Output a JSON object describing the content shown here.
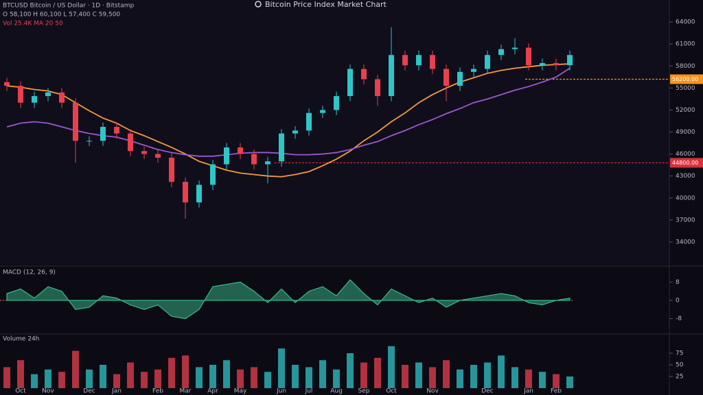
{
  "header": {
    "title": "Bitcoin Price Index Market Chart",
    "info_lines": [
      "BTCUSD Bitcoin / US Dollar · 1D · Bitstamp",
      "O 58,100 H 60,100 L 57,400 C 59,500",
      "Vol 25.4K MA 20 50"
    ]
  },
  "chart_data": {
    "type": "candlestick",
    "categories": [
      null,
      "Oct",
      null,
      "Nov",
      null,
      null,
      "Dec",
      null,
      "Jan",
      null,
      null,
      "Feb",
      null,
      "Mar",
      null,
      "Apr",
      null,
      "May",
      null,
      null,
      "Jun",
      null,
      "Jul",
      null,
      "Aug",
      null,
      "Sep",
      null,
      "Oct",
      null,
      null,
      "Nov",
      null,
      null,
      null,
      "Dec",
      null,
      null,
      "Jan",
      null,
      "Feb",
      null
    ],
    "open": [
      55800,
      55300,
      53000,
      53900,
      54400,
      53000,
      47800,
      47800,
      49700,
      48800,
      46400,
      46000,
      45500,
      42200,
      39400,
      41800,
      44600,
      46900,
      46000,
      44600,
      45000,
      48800,
      49200,
      51600,
      52000,
      53900,
      57600,
      56200,
      53900,
      59500,
      58100,
      59500,
      57600,
      55300,
      57200,
      57600,
      59500,
      60300,
      60500,
      58100,
      58400,
      58100
    ],
    "high": [
      56400,
      55900,
      54500,
      55000,
      55000,
      53600,
      48400,
      50300,
      50300,
      49400,
      47000,
      46600,
      46100,
      42800,
      42400,
      45200,
      47500,
      47500,
      46600,
      45600,
      49400,
      49800,
      52200,
      52600,
      54500,
      58200,
      58200,
      56800,
      63300,
      60100,
      60100,
      60100,
      58200,
      57800,
      58200,
      60100,
      60900,
      61800,
      61100,
      59000,
      59000,
      60100
    ],
    "low": [
      54600,
      52300,
      52300,
      53200,
      52300,
      44800,
      47100,
      47100,
      48100,
      45700,
      45300,
      44800,
      41500,
      37200,
      38700,
      41100,
      43900,
      45300,
      43900,
      42000,
      44300,
      48100,
      48500,
      50900,
      51300,
      53200,
      55500,
      52600,
      53200,
      57400,
      57400,
      56900,
      53200,
      54600,
      56500,
      56900,
      58800,
      59600,
      57400,
      57400,
      57400,
      57400
    ],
    "close": [
      55300,
      53000,
      53900,
      54400,
      53000,
      47800,
      47800,
      49700,
      48800,
      46400,
      46000,
      45500,
      42200,
      39400,
      41800,
      44600,
      46900,
      46000,
      44600,
      45000,
      48800,
      49200,
      51600,
      52000,
      53900,
      57600,
      56200,
      53900,
      59500,
      58100,
      59500,
      57600,
      55300,
      57200,
      57600,
      59500,
      60300,
      60500,
      58100,
      58400,
      58100,
      59500
    ],
    "up_color": "#2fc6c8",
    "down_color": "#e8404f",
    "series": [
      {
        "name": "MA 20",
        "color": "#f79a3e",
        "values": [
          55300,
          55100,
          54800,
          54600,
          54100,
          53000,
          51900,
          50900,
          50200,
          49200,
          48500,
          47700,
          46900,
          46000,
          45000,
          44400,
          43800,
          43400,
          43200,
          43000,
          42900,
          43200,
          43600,
          44400,
          45300,
          46400,
          47800,
          49000,
          50400,
          51600,
          53000,
          54100,
          55000,
          55800,
          56400,
          57000,
          57400,
          57700,
          57900,
          58100,
          58200,
          58300
        ]
      },
      {
        "name": "MA 50",
        "color": "#9b59d0",
        "values": [
          49700,
          50200,
          50400,
          50200,
          49700,
          49200,
          48800,
          48500,
          48300,
          47800,
          47200,
          46600,
          46200,
          45900,
          45700,
          45700,
          45900,
          46100,
          46200,
          46200,
          46100,
          45900,
          45900,
          46000,
          46200,
          46600,
          47200,
          47700,
          48500,
          49200,
          50000,
          50700,
          51500,
          52200,
          53000,
          53500,
          54100,
          54700,
          55200,
          55800,
          56500,
          57700
        ]
      }
    ],
    "levels": [
      {
        "value": 56200,
        "label": "56200.00",
        "color": "#f7931a"
      },
      {
        "value": 44800,
        "label": "44800.00",
        "color": "#d8323c"
      }
    ],
    "ylim": [
      31000,
      67000
    ],
    "yticks": [
      34000,
      37000,
      40000,
      43000,
      46000,
      49000,
      52000,
      55000,
      58000,
      61000,
      64000
    ],
    "oscillator": {
      "name": "MACD (12, 26, 9)",
      "color": "#3fcf9a",
      "values": [
        3,
        5,
        1,
        6,
        4,
        -4,
        -3,
        2,
        1,
        -2,
        -4,
        -2,
        -7,
        -8,
        -4,
        6,
        7,
        8,
        4,
        -1,
        5,
        -1,
        4,
        6,
        2,
        9,
        3,
        -2,
        5,
        2,
        -1,
        1,
        -3,
        0,
        1,
        2,
        3,
        2,
        -1,
        -2,
        0,
        1
      ],
      "ylim": [
        -12,
        12
      ],
      "yticks": [
        -8,
        0,
        8
      ]
    },
    "volume": {
      "name": "Volume 24h",
      "values": [
        45,
        60,
        30,
        40,
        35,
        80,
        40,
        50,
        30,
        55,
        35,
        40,
        65,
        70,
        45,
        50,
        60,
        40,
        45,
        35,
        85,
        50,
        45,
        60,
        40,
        75,
        55,
        65,
        90,
        50,
        55,
        45,
        60,
        40,
        50,
        55,
        70,
        45,
        40,
        35,
        30,
        25
      ],
      "ylim": [
        0,
        100
      ],
      "yticks": [
        25,
        50,
        75
      ]
    }
  }
}
